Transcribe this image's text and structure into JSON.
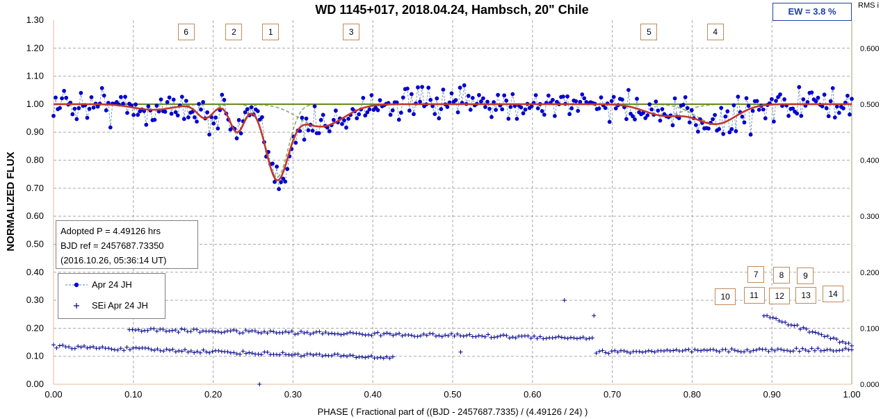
{
  "chart_data": {
    "type": "scatter",
    "title": "WD 1145+017, 2018.04.24, Hambsch, 20\" Chile",
    "xlabel": "PHASE  ( Fractional part of ((BJD - 2457687.7335)  / (4.49126 / 24) )",
    "ylabel": "NORMALIZED  FLUX",
    "y2label": "RMS i",
    "xlim": [
      0,
      1
    ],
    "ylim": [
      0,
      1.3
    ],
    "y2lim": [
      0,
      0.65
    ],
    "x_ticks": [
      "0.00",
      "0.10",
      "0.20",
      "0.30",
      "0.40",
      "0.50",
      "0.60",
      "0.70",
      "0.80",
      "0.90",
      "1.00"
    ],
    "y_ticks": [
      "0.00",
      "0.10",
      "0.20",
      "0.30",
      "0.40",
      "0.50",
      "0.60",
      "0.70",
      "0.80",
      "0.90",
      "1.00",
      "1.10",
      "1.20",
      "1.30"
    ],
    "y2_ticks": [
      "0.000",
      "0.100",
      "0.200",
      "0.300",
      "0.400",
      "0.500",
      "0.600"
    ],
    "grid": true,
    "ew_label": "EW =  3.8 %",
    "info_lines": [
      "Adopted P = 4.49126 hrs",
      "BJD ref = 2457687.73350",
      "(2016.10.26, 05:36:14 UT)"
    ],
    "legend_entries": [
      "Apr 24 JH",
      "SEi Apr 24 JH"
    ],
    "dip_labels": [
      {
        "label": "6",
        "x": 0.166
      },
      {
        "label": "2",
        "x": 0.226
      },
      {
        "label": "1",
        "x": 0.272
      },
      {
        "label": "3",
        "x": 0.373
      },
      {
        "label": "5",
        "x": 0.746
      },
      {
        "label": "4",
        "x": 0.829
      }
    ],
    "dip_labels_lower": [
      {
        "label": "7",
        "x": 0.88,
        "y": 0.395
      },
      {
        "label": "8",
        "x": 0.912,
        "y": 0.393
      },
      {
        "label": "9",
        "x": 0.942,
        "y": 0.39
      },
      {
        "label": "10",
        "x": 0.839,
        "y": 0.315
      },
      {
        "label": "11",
        "x": 0.875,
        "y": 0.32
      },
      {
        "label": "12",
        "x": 0.907,
        "y": 0.318
      },
      {
        "label": "13",
        "x": 0.94,
        "y": 0.32
      },
      {
        "label": "14",
        "x": 0.974,
        "y": 0.325
      }
    ],
    "model_dips": [
      {
        "center": 0.28,
        "depth": 0.26,
        "width": 0.014
      },
      {
        "center": 0.23,
        "depth": 0.1,
        "width": 0.009
      },
      {
        "center": 0.19,
        "depth": 0.05,
        "width": 0.01
      },
      {
        "center": 0.335,
        "depth": 0.08,
        "width": 0.028
      },
      {
        "center": 0.125,
        "depth": 0.02,
        "width": 0.025
      },
      {
        "center": 0.765,
        "depth": 0.04,
        "width": 0.025
      },
      {
        "center": 0.83,
        "depth": 0.07,
        "width": 0.025
      }
    ],
    "series": [
      {
        "name": "Apr 24 JH",
        "color": "#0000cc",
        "style": "dots-with-dashed-line",
        "points_per_cycle": 380,
        "noise_sd": 0.05
      },
      {
        "name": "SEi Apr 24 JH",
        "color": "#00008b",
        "style": "plus-markers",
        "segments": [
          {
            "x": [
              0.0,
              0.425
            ],
            "y_start": 0.135,
            "y_end": 0.095
          },
          {
            "x": [
              0.095,
              0.675
            ],
            "y_start": 0.195,
            "y_end": 0.165
          },
          {
            "x": [
              0.68,
              1.0
            ],
            "y_start": 0.115,
            "y_end": 0.125
          },
          {
            "x": [
              0.89,
              1.0
            ],
            "y_start": 0.245,
            "y_end": 0.14
          }
        ],
        "outliers": [
          {
            "x": 0.258,
            "y": 0.0
          },
          {
            "x": 0.51,
            "y": 0.115
          },
          {
            "x": 0.64,
            "y": 0.3
          },
          {
            "x": 0.677,
            "y": 0.245
          }
        ]
      }
    ],
    "model_color": "#c0392b",
    "component_color": "#8fa86a",
    "baseline_color": "#6b8e23"
  }
}
